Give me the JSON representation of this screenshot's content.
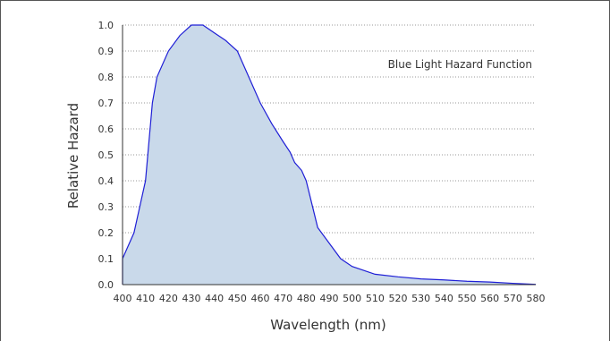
{
  "chart_data": {
    "type": "area",
    "title": "",
    "annotation": "Blue Light Hazard Function",
    "xlabel": "Wavelength (nm)",
    "ylabel": "Relative Hazard",
    "xlim": [
      400,
      580
    ],
    "ylim": [
      0,
      1.0
    ],
    "x_ticks": [
      "400",
      "410",
      "420",
      "430",
      "440",
      "450",
      "460",
      "470",
      "480",
      "490",
      "500",
      "510",
      "520",
      "530",
      "540",
      "550",
      "560",
      "570",
      "580"
    ],
    "y_ticks": [
      "0.0",
      "0.1",
      "0.2",
      "0.3",
      "0.4",
      "0.5",
      "0.6",
      "0.7",
      "0.8",
      "0.9",
      "1.0"
    ],
    "grid": "horizontal dotted",
    "fill_color": "#c9d9ea",
    "line_color": "#1f1fd6",
    "series": [
      {
        "x": [
          400,
          405,
          410,
          411,
          413,
          415,
          420,
          425,
          430,
          435,
          440,
          445,
          450,
          455,
          460,
          465,
          470,
          473,
          475,
          478,
          480,
          485,
          490,
          495,
          500,
          505,
          510,
          520,
          530,
          540,
          550,
          560,
          570,
          580
        ],
        "y": [
          0.1,
          0.2,
          0.4,
          0.5,
          0.7,
          0.8,
          0.9,
          0.96,
          1.0,
          1.0,
          0.97,
          0.94,
          0.9,
          0.8,
          0.7,
          0.62,
          0.55,
          0.51,
          0.47,
          0.44,
          0.4,
          0.22,
          0.16,
          0.1,
          0.07,
          0.055,
          0.04,
          0.03,
          0.022,
          0.018,
          0.013,
          0.01,
          0.005,
          0.001
        ]
      }
    ]
  }
}
